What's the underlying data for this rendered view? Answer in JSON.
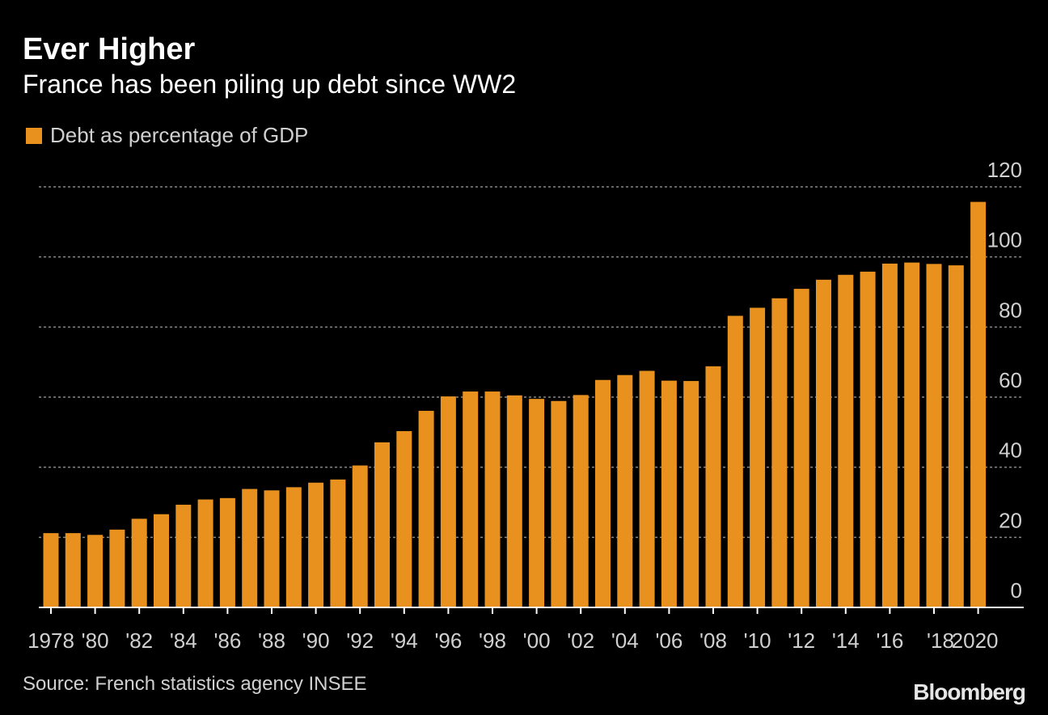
{
  "header": {
    "title": "Ever Higher",
    "subtitle": "France has been piling up debt since WW2"
  },
  "legend": {
    "label": "Debt as percentage of GDP"
  },
  "footer": {
    "source": "Source: French statistics agency INSEE",
    "brand": "Bloomberg"
  },
  "colors": {
    "bar": "#E8911E",
    "grid": "#888888",
    "background": "#000000"
  },
  "chart_data": {
    "type": "bar",
    "title": "Ever Higher",
    "subtitle": "France has been piling up debt since WW2",
    "categories": [
      "1978",
      "1979",
      "1980",
      "1981",
      "1982",
      "1983",
      "1984",
      "1985",
      "1986",
      "1987",
      "1988",
      "1989",
      "1990",
      "1991",
      "1992",
      "1993",
      "1994",
      "1995",
      "1996",
      "1997",
      "1998",
      "1999",
      "2000",
      "2001",
      "2002",
      "2003",
      "2004",
      "2005",
      "2006",
      "2007",
      "2008",
      "2009",
      "2010",
      "2011",
      "2012",
      "2013",
      "2014",
      "2015",
      "2016",
      "2017",
      "2018",
      "2019",
      "2020"
    ],
    "series": [
      {
        "name": "Debt as percentage of GDP",
        "values": [
          21.2,
          21.2,
          20.7,
          22.2,
          25.3,
          26.6,
          29.3,
          30.8,
          31.2,
          33.8,
          33.4,
          34.3,
          35.6,
          36.5,
          40.5,
          47.1,
          50.3,
          56.1,
          60.2,
          61.6,
          61.6,
          60.5,
          59.5,
          58.9,
          60.6,
          64.9,
          66.3,
          67.5,
          64.7,
          64.6,
          68.8,
          83.2,
          85.5,
          88.2,
          90.9,
          93.5,
          94.9,
          95.8,
          98.1,
          98.4,
          98.0,
          97.6,
          115.7
        ]
      }
    ],
    "x_tick_labels": [
      "1978",
      "'80",
      "'82",
      "'84",
      "'86",
      "'88",
      "'90",
      "'92",
      "'94",
      "'96",
      "'98",
      "'00",
      "'02",
      "'04",
      "'06",
      "'08",
      "'10",
      "'12",
      "'14",
      "'16",
      "'18",
      "2020"
    ],
    "y_ticks": [
      0,
      20,
      40,
      60,
      80,
      100,
      120
    ],
    "ylim": [
      0,
      120
    ],
    "xlabel": "",
    "ylabel": "",
    "grid": true,
    "legend_position": "top-left",
    "y_axis_side": "right"
  }
}
